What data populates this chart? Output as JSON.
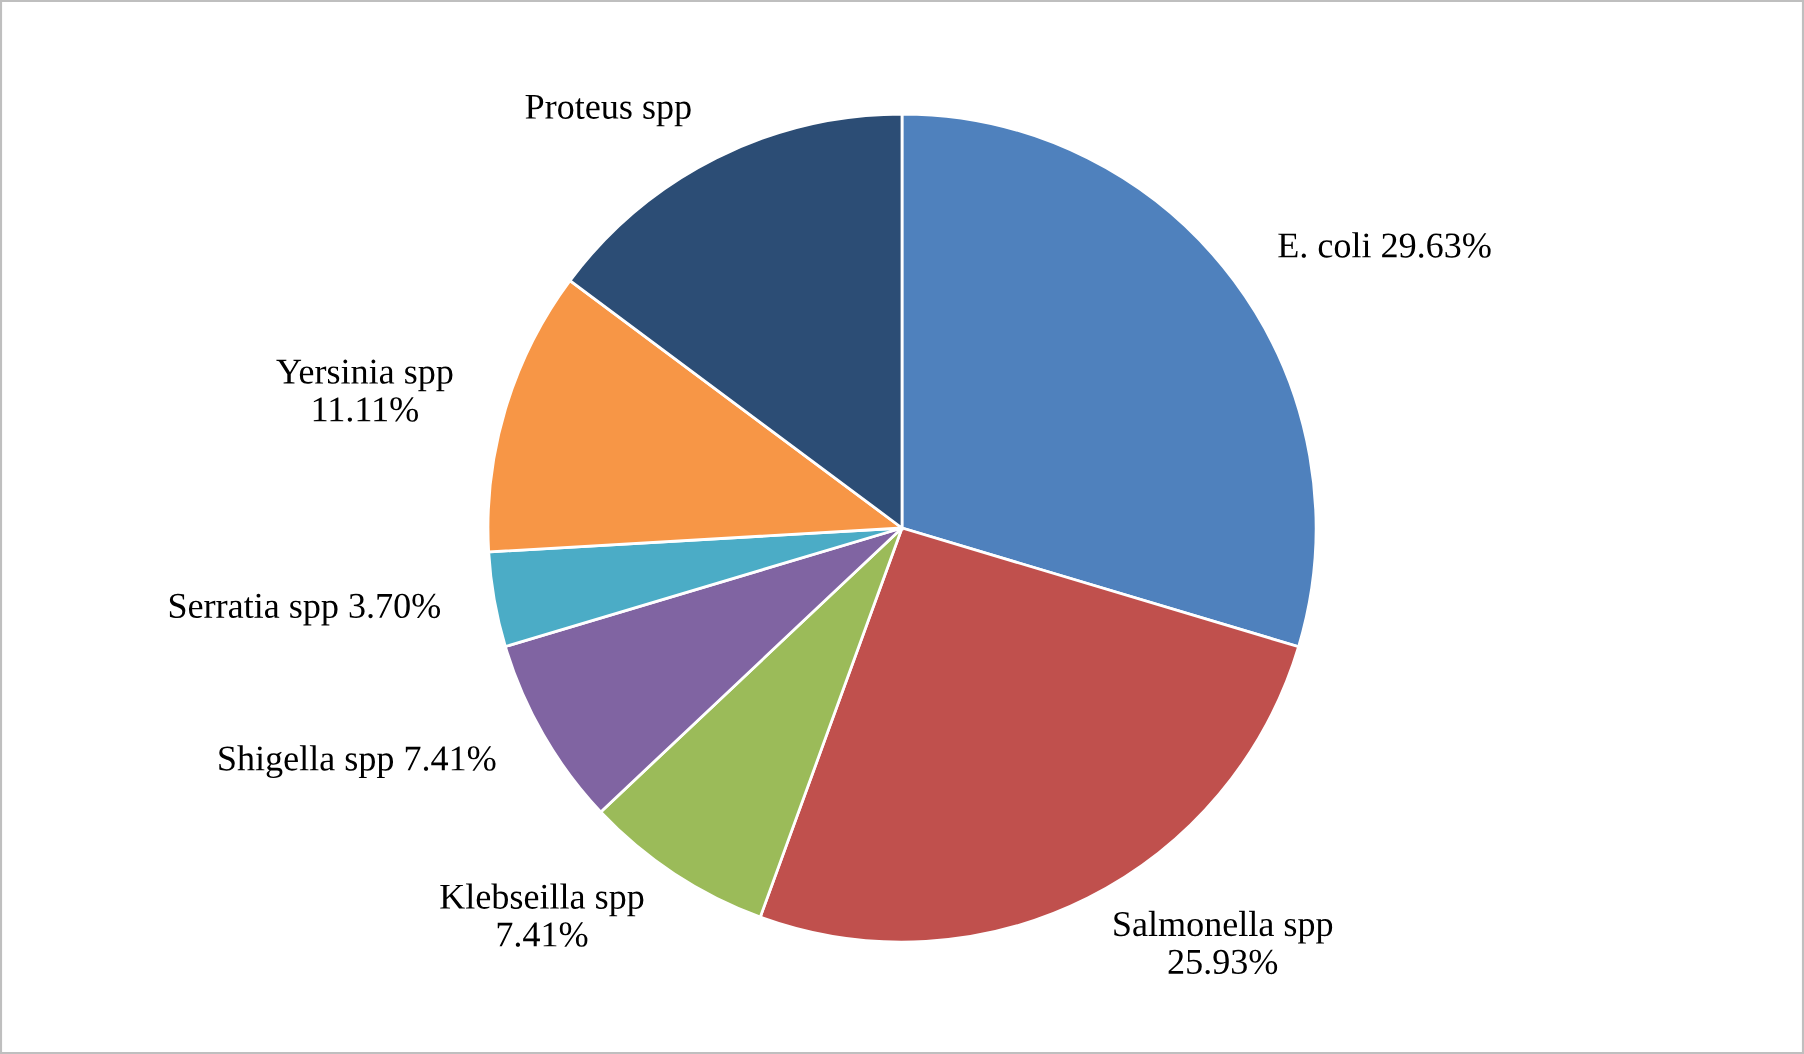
{
  "chart_data": {
    "type": "pie",
    "categories": [
      "E. coli",
      "Salmonella spp",
      "Klebseilla spp",
      "Shigella spp",
      "Serratia spp",
      "Yersinia spp",
      "Proteus spp"
    ],
    "values": [
      29.63,
      25.93,
      7.41,
      7.41,
      3.7,
      11.11,
      14.81
    ],
    "value_labels": [
      "29.63%",
      "25.93%",
      "7.41%",
      "7.41%",
      "3.70%",
      "11.11%",
      null
    ],
    "colors": [
      "#4f81bd",
      "#c0504d",
      "#9bbb59",
      "#8064a2",
      "#4bacc6",
      "#f79646",
      "#2c4d75"
    ],
    "legend": false
  }
}
